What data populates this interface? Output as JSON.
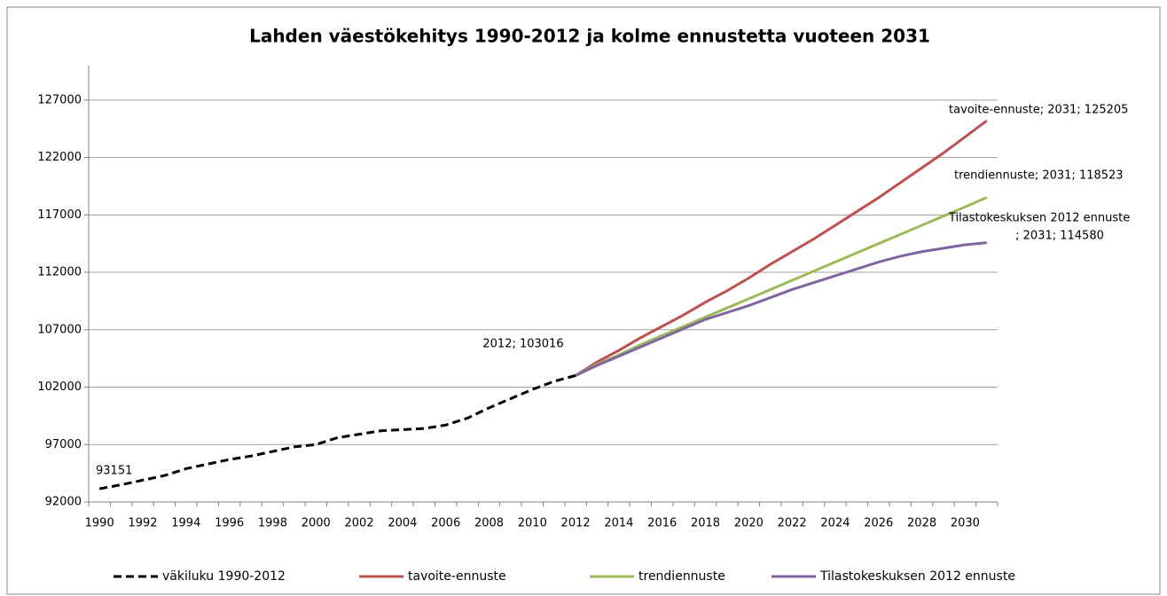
{
  "chart_data": {
    "type": "line",
    "title": "Lahden väestökehitys 1990-2012 ja kolme ennustetta vuoteen 2031",
    "categories": [
      "1990",
      null,
      "1992",
      null,
      "1994",
      null,
      "1996",
      null,
      "1998",
      null,
      "2000",
      null,
      "2002",
      null,
      "2004",
      null,
      "2006",
      null,
      "2008",
      null,
      "2010",
      null,
      "2012",
      null,
      "2014",
      null,
      "2016",
      null,
      "2018",
      null,
      "2020",
      null,
      "2022",
      null,
      "2024",
      null,
      "2026",
      null,
      "2028",
      null,
      "2030",
      null
    ],
    "series": [
      {
        "name": "väkiluku 1990-2012",
        "color": "#000000",
        "dashed": true,
        "values": [
          93151,
          93500,
          93900,
          94300,
          94900,
          95300,
          95700,
          96000,
          96400,
          96800,
          97000,
          97600,
          97900,
          98200,
          98300,
          98400,
          98700,
          99300,
          100200,
          101000,
          101800,
          102500,
          103016,
          null,
          null,
          null,
          null,
          null,
          null,
          null,
          null,
          null,
          null,
          null,
          null,
          null,
          null,
          null,
          null,
          null,
          null,
          null
        ]
      },
      {
        "name": "tavoite-ennuste",
        "color": "#c0504d",
        "values": [
          null,
          null,
          null,
          null,
          null,
          null,
          null,
          null,
          null,
          null,
          null,
          null,
          null,
          null,
          null,
          null,
          null,
          null,
          null,
          null,
          null,
          null,
          103016,
          104200,
          105200,
          106300,
          107300,
          108300,
          109400,
          110400,
          111500,
          112700,
          113800,
          114900,
          116100,
          117300,
          118500,
          119800,
          121100,
          122400,
          123800,
          125205
        ]
      },
      {
        "name": "trendiennuste",
        "color": "#9bbb59",
        "values": [
          null,
          null,
          null,
          null,
          null,
          null,
          null,
          null,
          null,
          null,
          null,
          null,
          null,
          null,
          null,
          null,
          null,
          null,
          null,
          null,
          null,
          null,
          103016,
          104000,
          104800,
          105700,
          106500,
          107300,
          108100,
          108900,
          109700,
          110500,
          111300,
          112100,
          112900,
          113700,
          114500,
          115300,
          116100,
          116900,
          117700,
          118523
        ]
      },
      {
        "name": "Tilastokeskuksen 2012 ennuste",
        "color": "#8064a2",
        "values": [
          null,
          null,
          null,
          null,
          null,
          null,
          null,
          null,
          null,
          null,
          null,
          null,
          null,
          null,
          null,
          null,
          null,
          null,
          null,
          null,
          null,
          null,
          103016,
          103900,
          104700,
          105500,
          106300,
          107100,
          107900,
          108500,
          109100,
          109800,
          110500,
          111100,
          111700,
          112300,
          112900,
          113400,
          113800,
          114100,
          114400,
          114580
        ]
      }
    ],
    "annotations": [
      "93151",
      "2012; 103016",
      "tavoite-ennuste; 2031; 125205",
      "trendiennuste; 2031; 118523",
      "Tilastokeskuksen 2012 ennuste",
      "; 2031; 114580"
    ],
    "ylim": [
      92000,
      130000
    ],
    "yticks": [
      92000,
      97000,
      102000,
      107000,
      112000,
      117000,
      122000,
      127000
    ],
    "grid": true,
    "legend": "bottom"
  }
}
